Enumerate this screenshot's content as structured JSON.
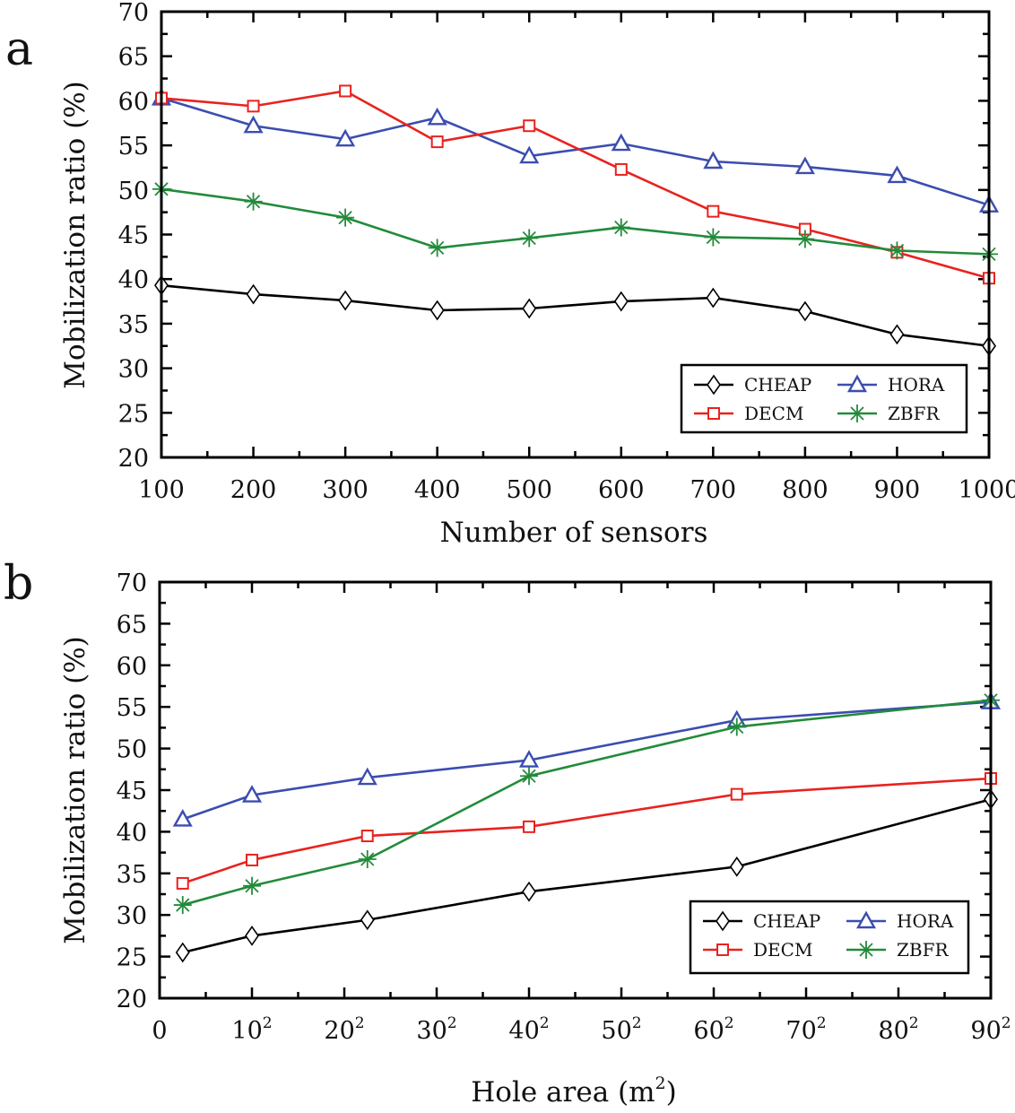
{
  "panels": [
    {
      "letter": "a"
    },
    {
      "letter": "b"
    }
  ],
  "chart_data": [
    {
      "type": "line",
      "panel": "a",
      "title": "",
      "xlabel": "Number of sensors",
      "ylabel": "Mobilization ratio (%)",
      "x": [
        100,
        200,
        300,
        400,
        500,
        600,
        700,
        800,
        900,
        1000
      ],
      "xlim": [
        100,
        1000
      ],
      "ylim": [
        20,
        70
      ],
      "xticks": [
        100,
        200,
        300,
        400,
        500,
        600,
        700,
        800,
        900,
        1000
      ],
      "xtick_labels": [
        "100",
        "200",
        "300",
        "400",
        "500",
        "600",
        "700",
        "800",
        "900",
        "1000"
      ],
      "yticks": [
        20,
        25,
        30,
        35,
        40,
        45,
        50,
        55,
        60,
        65,
        70
      ],
      "ytick_labels": [
        "20",
        "25",
        "30",
        "35",
        "40",
        "45",
        "50",
        "55",
        "60",
        "65",
        "70"
      ],
      "grid": false,
      "legend_position": "bottom-right",
      "series": [
        {
          "name": "CHEAP",
          "color": "#000000",
          "marker": "diamond",
          "values": [
            39.3,
            38.3,
            37.6,
            36.5,
            36.7,
            37.5,
            37.9,
            36.4,
            33.8,
            32.5
          ]
        },
        {
          "name": "HORA",
          "color": "#3b4db0",
          "marker": "triangle",
          "values": [
            60.3,
            57.2,
            55.7,
            58.1,
            53.8,
            55.2,
            53.2,
            52.6,
            51.6,
            48.3
          ]
        },
        {
          "name": "DECM",
          "color": "#e8231f",
          "marker": "square",
          "values": [
            60.3,
            59.4,
            61.1,
            55.4,
            57.2,
            52.3,
            47.6,
            45.6,
            43.0,
            40.1
          ]
        },
        {
          "name": "ZBFR",
          "color": "#228b3a",
          "marker": "asterisk",
          "values": [
            50.1,
            48.7,
            46.9,
            43.5,
            44.6,
            45.8,
            44.7,
            44.5,
            43.2,
            42.8
          ]
        }
      ]
    },
    {
      "type": "line",
      "panel": "b",
      "title": "",
      "xlabel": "Hole area (m",
      "xlabel_sup": "2",
      "xlabel_close": ")",
      "ylabel": "Mobilization ratio (%)",
      "x_scale_note": "axis linear in hole side length; labels show squared side",
      "x": [
        2.5,
        10,
        22.5,
        40,
        62.5,
        90
      ],
      "xlim": [
        0,
        90
      ],
      "ylim": [
        20,
        70
      ],
      "xticks": [
        0,
        10,
        20,
        30,
        40,
        50,
        60,
        70,
        80,
        90
      ],
      "xtick_labels": [
        "0",
        "10",
        "20",
        "30",
        "40",
        "50",
        "60",
        "70",
        "80",
        "90"
      ],
      "xtick_sups": [
        "",
        "2",
        "2",
        "2",
        "2",
        "2",
        "2",
        "2",
        "2",
        "2"
      ],
      "yticks": [
        20,
        25,
        30,
        35,
        40,
        45,
        50,
        55,
        60,
        65,
        70
      ],
      "ytick_labels": [
        "20",
        "25",
        "30",
        "35",
        "40",
        "45",
        "50",
        "55",
        "60",
        "65",
        "70"
      ],
      "grid": false,
      "legend_position": "bottom-right",
      "series": [
        {
          "name": "CHEAP",
          "color": "#000000",
          "marker": "diamond",
          "values": [
            25.5,
            27.5,
            29.4,
            32.8,
            35.8,
            43.9
          ]
        },
        {
          "name": "HORA",
          "color": "#3b4db0",
          "marker": "triangle",
          "values": [
            41.5,
            44.4,
            46.5,
            48.6,
            53.4,
            55.6
          ]
        },
        {
          "name": "DECM",
          "color": "#e8231f",
          "marker": "square",
          "values": [
            33.8,
            36.6,
            39.5,
            40.6,
            44.5,
            46.4
          ]
        },
        {
          "name": "ZBFR",
          "color": "#228b3a",
          "marker": "asterisk",
          "values": [
            31.2,
            33.5,
            36.7,
            46.7,
            52.6,
            55.8
          ]
        }
      ]
    }
  ]
}
